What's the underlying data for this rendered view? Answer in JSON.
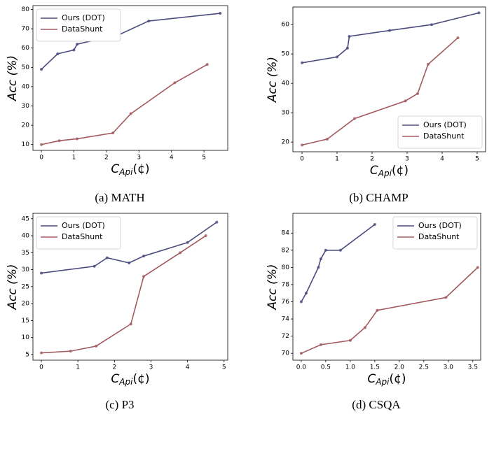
{
  "chart_data": [
    {
      "type": "line",
      "caption": "(a) MATH",
      "ylabel": "Acc (%)",
      "xlabel": {
        "var": "C",
        "sub": "Api",
        "unit": "(¢)"
      },
      "xlim": [
        -0.26,
        5.73
      ],
      "xticks": [
        0,
        1,
        2,
        3,
        4,
        5
      ],
      "ylim": [
        7,
        82
      ],
      "yticks": [
        10,
        20,
        30,
        40,
        50,
        60,
        70,
        80
      ],
      "legend": "upper left",
      "series": [
        {
          "name": "Ours (DOT)",
          "color": "#4b4b7f",
          "x": [
            0,
            0.5,
            1.0,
            1.1,
            2.4,
            3.3,
            5.5
          ],
          "values": [
            49,
            57,
            59,
            62,
            67,
            74,
            78
          ]
        },
        {
          "name": "DataShunt",
          "color": "#a35a5f",
          "x": [
            0,
            0.55,
            1.1,
            2.2,
            2.75,
            4.1,
            5.1
          ],
          "values": [
            10,
            12,
            13,
            16,
            26,
            42,
            51.5
          ]
        }
      ]
    },
    {
      "type": "line",
      "caption": "(b) CHAMP",
      "ylabel": "Acc (%)",
      "xlabel": {
        "var": "C",
        "sub": "Api",
        "unit": "(¢)"
      },
      "xlim": [
        -0.26,
        5.24
      ],
      "xticks": [
        0,
        1,
        2,
        3,
        4,
        5
      ],
      "ylim": [
        16.7,
        66
      ],
      "yticks": [
        20,
        30,
        40,
        50,
        60
      ],
      "legend": "lower right",
      "series": [
        {
          "name": "Ours (DOT)",
          "color": "#4b4b7f",
          "x": [
            0,
            1,
            1.3,
            1.35,
            2.5,
            3.7,
            5.05
          ],
          "values": [
            47,
            49,
            52,
            56,
            58,
            60,
            64
          ]
        },
        {
          "name": "DataShunt",
          "color": "#a35a5f",
          "x": [
            0,
            0.72,
            1.5,
            2.95,
            3.3,
            3.6,
            4.45
          ],
          "values": [
            19,
            21,
            28,
            34,
            36.5,
            46.5,
            55.5
          ]
        }
      ]
    },
    {
      "type": "line",
      "caption": "(c) P3",
      "ylabel": "Acc (%)",
      "xlabel": {
        "var": "C",
        "sub": "Api",
        "unit": "(¢)"
      },
      "xlim": [
        -0.23,
        5.1
      ],
      "xticks": [
        0,
        1,
        2,
        3,
        4,
        5
      ],
      "ylim": [
        3.35,
        46.6
      ],
      "yticks": [
        5,
        10,
        15,
        20,
        25,
        30,
        35,
        40,
        45
      ],
      "legend": "upper left",
      "series": [
        {
          "name": "Ours (DOT)",
          "color": "#4b4b7f",
          "x": [
            0,
            1.45,
            1.8,
            2.4,
            2.8,
            4,
            4.8
          ],
          "values": [
            29,
            31,
            33.5,
            32,
            34,
            38,
            44
          ]
        },
        {
          "name": "DataShunt",
          "color": "#a35a5f",
          "x": [
            0,
            0.8,
            1.5,
            2.45,
            2.8,
            3.8,
            4.5
          ],
          "values": [
            5.5,
            6,
            7.5,
            14,
            28,
            35,
            40
          ]
        }
      ]
    },
    {
      "type": "line",
      "caption": "(d) CSQA",
      "ylabel": "Acc (%)",
      "xlabel": {
        "var": "C",
        "sub": "Api",
        "unit": "(¢)"
      },
      "xlim": [
        -0.17,
        3.66
      ],
      "xticks": [
        {
          "value": 0,
          "label": "0.0"
        },
        0.5,
        {
          "value": 1,
          "label": "1.0"
        },
        1.5,
        {
          "value": 2,
          "label": "2.0"
        },
        2.5,
        {
          "value": 3,
          "label": "3.0"
        },
        3.5
      ],
      "ylim": [
        69.2,
        86.3
      ],
      "yticks": [
        70,
        72,
        74,
        76,
        78,
        80,
        82,
        84
      ],
      "legend": "upper right",
      "series": [
        {
          "name": "Ours (DOT)",
          "color": "#4b4b7f",
          "x": [
            0,
            0.1,
            0.35,
            0.4,
            0.5,
            0.8,
            1.5
          ],
          "values": [
            76,
            77,
            80,
            81,
            82,
            82,
            85
          ]
        },
        {
          "name": "DataShunt",
          "color": "#a35a5f",
          "x": [
            0,
            0.4,
            1.0,
            1.3,
            1.55,
            2.95,
            3.6
          ],
          "values": [
            70,
            71,
            71.5,
            73,
            75,
            76.5,
            80
          ]
        }
      ]
    }
  ]
}
